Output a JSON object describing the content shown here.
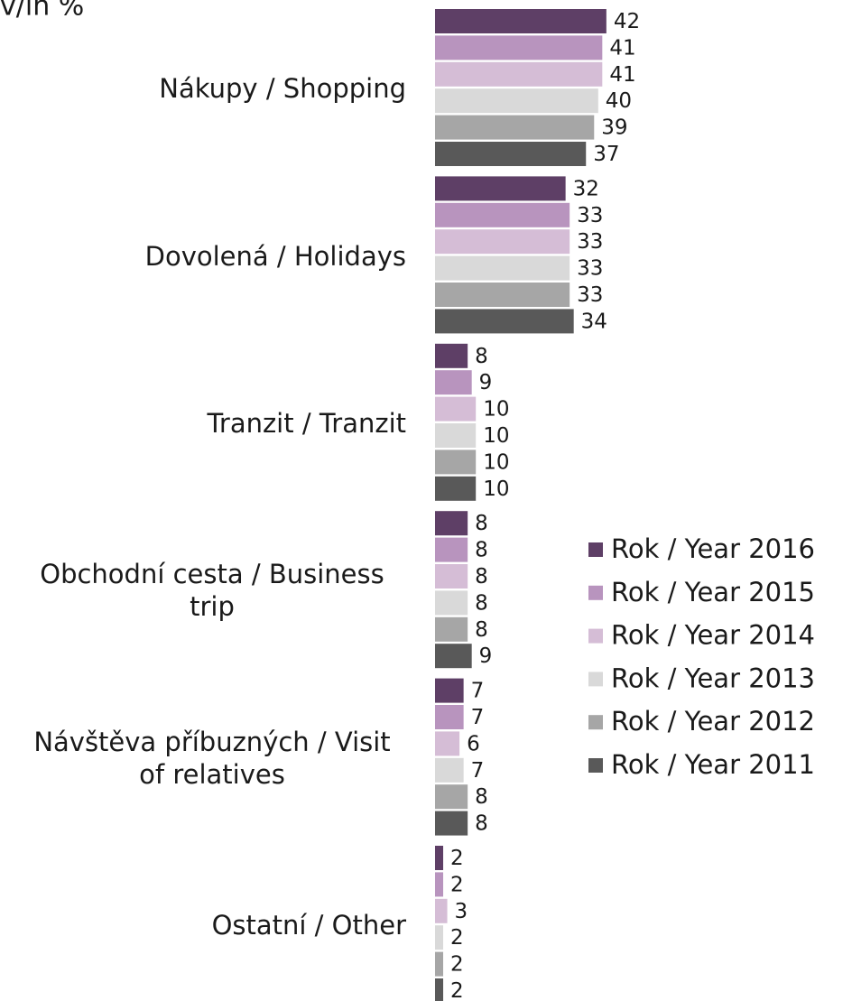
{
  "chart_data": {
    "type": "hbar",
    "title": "v/in %",
    "categories": [
      "Nákupy / Shopping",
      "Dovolená / Holidays",
      "Tranzit / Tranzit",
      "Obchodní cesta / Business trip",
      "Návštěva příbuzných / Visit of relatives",
      "Ostatní / Other"
    ],
    "series": [
      {
        "name": "Rok / Year 2016",
        "color": "#5e3f66",
        "values": [
          42,
          32,
          8,
          8,
          7,
          2
        ]
      },
      {
        "name": "Rok / Year 2015",
        "color": "#b894be",
        "values": [
          41,
          33,
          9,
          8,
          7,
          2
        ]
      },
      {
        "name": "Rok / Year 2014",
        "color": "#d5bdd6",
        "values": [
          41,
          33,
          10,
          8,
          6,
          3
        ]
      },
      {
        "name": "Rok / Year 2013",
        "color": "#d9d9d9",
        "values": [
          40,
          33,
          10,
          8,
          7,
          2
        ]
      },
      {
        "name": "Rok / Year 2012",
        "color": "#a6a6a6",
        "values": [
          39,
          33,
          10,
          8,
          8,
          2
        ]
      },
      {
        "name": "Rok / Year 2011",
        "color": "#595959",
        "values": [
          37,
          34,
          10,
          9,
          8,
          2
        ]
      }
    ],
    "legend": "right"
  }
}
